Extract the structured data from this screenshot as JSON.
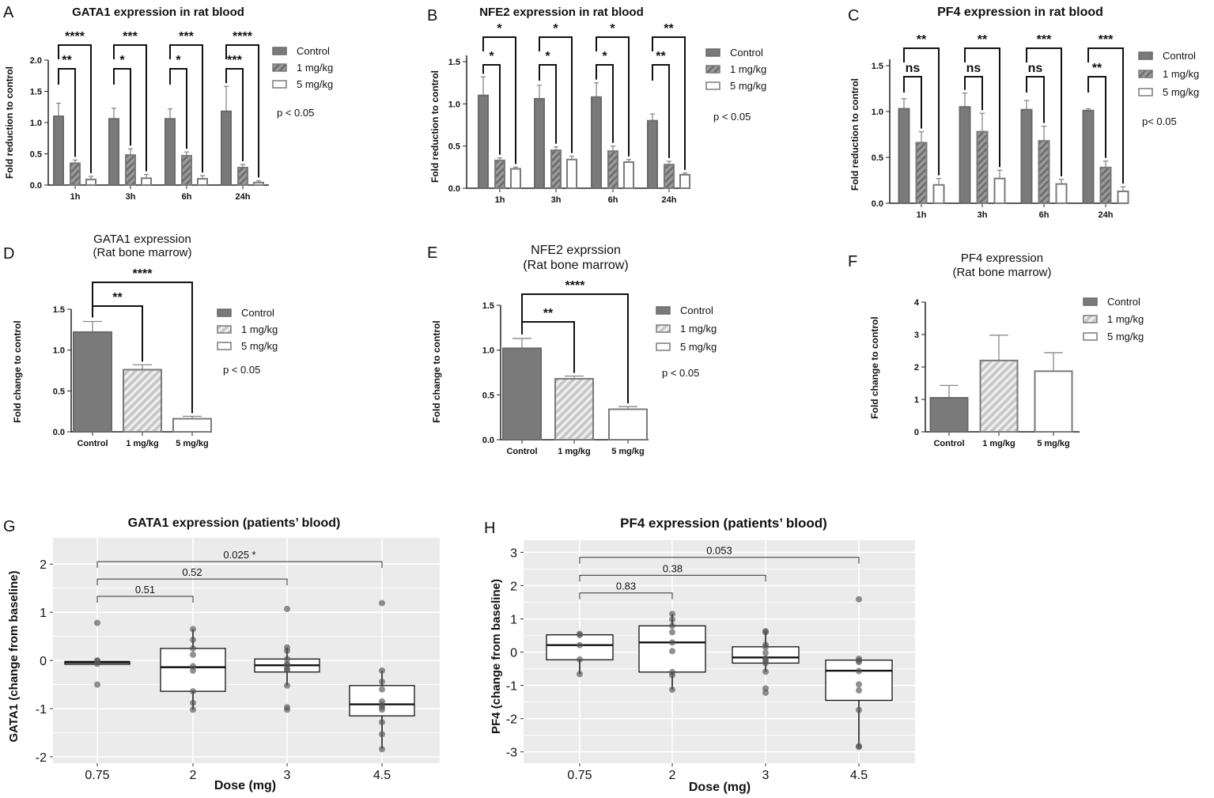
{
  "chart_data": [
    {
      "panel": "A",
      "type": "bar",
      "title": "GATA1 expression in rat blood",
      "ylabel": "Fold reduction to control",
      "xlabel": "",
      "categories": [
        "1h",
        "3h",
        "6h",
        "24h"
      ],
      "ylim": [
        0,
        2.0
      ],
      "yticks": [
        "0.0",
        "0.5",
        "1.0",
        "1.5",
        "2.0"
      ],
      "ytick_values": [
        0,
        0.5,
        1.0,
        1.5,
        2.0
      ],
      "series": [
        {
          "name": "Control",
          "values": [
            1.1,
            1.06,
            1.06,
            1.18
          ],
          "errors": [
            0.21,
            0.17,
            0.16,
            0.4
          ]
        },
        {
          "name": "1 mg/kg",
          "values": [
            0.35,
            0.48,
            0.47,
            0.28
          ],
          "errors": [
            0.05,
            0.1,
            0.06,
            0.05
          ]
        },
        {
          "name": "5 mg/kg",
          "values": [
            0.09,
            0.11,
            0.1,
            0.04
          ],
          "errors": [
            0.05,
            0.06,
            0.05,
            0.03
          ]
        }
      ],
      "significance": [
        {
          "vs_1mg": "**",
          "vs_5mg": "****"
        },
        {
          "vs_1mg": "*",
          "vs_5mg": "***"
        },
        {
          "vs_1mg": "*",
          "vs_5mg": "***"
        },
        {
          "vs_1mg": "***",
          "vs_5mg": "****"
        }
      ],
      "note": "p < 0.05",
      "legend": "right"
    },
    {
      "panel": "B",
      "type": "bar",
      "title": "NFE2 expression in rat blood",
      "ylabel": "Fold reduction to control",
      "xlabel": "",
      "categories": [
        "1h",
        "3h",
        "6h",
        "24h"
      ],
      "ylim": [
        0,
        1.5
      ],
      "yticks": [
        "0.0",
        "0.5",
        "1.0",
        "1.5"
      ],
      "ytick_values": [
        0,
        0.5,
        1.0,
        1.5
      ],
      "series": [
        {
          "name": "Control",
          "values": [
            1.1,
            1.06,
            1.08,
            0.8
          ],
          "errors": [
            0.22,
            0.16,
            0.17,
            0.08
          ]
        },
        {
          "name": "1 mg/kg",
          "values": [
            0.33,
            0.45,
            0.44,
            0.28
          ],
          "errors": [
            0.03,
            0.04,
            0.06,
            0.04
          ]
        },
        {
          "name": "5 mg/kg",
          "values": [
            0.23,
            0.34,
            0.31,
            0.16
          ],
          "errors": [
            0.02,
            0.04,
            0.03,
            0.02
          ]
        }
      ],
      "significance": [
        {
          "vs_1mg": "*",
          "vs_5mg": "*"
        },
        {
          "vs_1mg": "*",
          "vs_5mg": "*"
        },
        {
          "vs_1mg": "*",
          "vs_5mg": "*"
        },
        {
          "vs_1mg": "**",
          "vs_5mg": "**"
        }
      ],
      "note": "p < 0.05",
      "legend": "right"
    },
    {
      "panel": "C",
      "type": "bar",
      "title": "PF4 expression in rat blood",
      "ylabel": "Fold reduction to control",
      "xlabel": "",
      "categories": [
        "1h",
        "3h",
        "6h",
        "24h"
      ],
      "ylim": [
        0,
        1.5
      ],
      "yticks": [
        "0.0",
        "0.5",
        "1.0",
        "1.5"
      ],
      "ytick_values": [
        0,
        0.5,
        1.0,
        1.5
      ],
      "series": [
        {
          "name": "Control",
          "values": [
            1.03,
            1.05,
            1.02,
            1.01
          ],
          "errors": [
            0.11,
            0.15,
            0.1,
            0.02
          ]
        },
        {
          "name": "1 mg/kg",
          "values": [
            0.66,
            0.78,
            0.68,
            0.39
          ],
          "errors": [
            0.12,
            0.2,
            0.16,
            0.07
          ]
        },
        {
          "name": "5 mg/kg",
          "values": [
            0.2,
            0.27,
            0.21,
            0.13
          ],
          "errors": [
            0.07,
            0.09,
            0.05,
            0.05
          ]
        }
      ],
      "significance": [
        {
          "vs_1mg": "ns",
          "vs_5mg": "**"
        },
        {
          "vs_1mg": "ns",
          "vs_5mg": "**"
        },
        {
          "vs_1mg": "ns",
          "vs_5mg": "***"
        },
        {
          "vs_1mg": "**",
          "vs_5mg": "***"
        }
      ],
      "note": "p< 0.05",
      "legend": "right"
    },
    {
      "panel": "D",
      "type": "bar",
      "title": "GATA1 expression",
      "subtitle": "(Rat bone marrow)",
      "ylabel": "Fold change to control",
      "xlabel": "",
      "categories": [
        "Control",
        "1 mg/kg",
        "5 mg/kg"
      ],
      "ylim": [
        0,
        1.5
      ],
      "yticks": [
        "0.0",
        "0.5",
        "1.0",
        "1.5"
      ],
      "ytick_values": [
        0,
        0.5,
        1.0,
        1.5
      ],
      "values": [
        1.22,
        0.76,
        0.16
      ],
      "errors": [
        0.13,
        0.06,
        0.03
      ],
      "legend_entries": [
        "Control",
        "1 mg/kg",
        "5 mg/kg"
      ],
      "significance": {
        "vs_1mg": "**",
        "vs_5mg": "****"
      },
      "note": "p < 0.05",
      "legend": "right"
    },
    {
      "panel": "E",
      "type": "bar",
      "title": "NFE2 exprssion",
      "subtitle": "(Rat bone marrow)",
      "ylabel": "Fold change to control",
      "xlabel": "",
      "categories": [
        "Control",
        "1 mg/kg",
        "5 mg/kg"
      ],
      "ylim": [
        0,
        1.5
      ],
      "yticks": [
        "0.0",
        "0.5",
        "1.0",
        "1.5"
      ],
      "ytick_values": [
        0,
        0.5,
        1.0,
        1.5
      ],
      "values": [
        1.02,
        0.68,
        0.34
      ],
      "errors": [
        0.11,
        0.03,
        0.03
      ],
      "legend_entries": [
        "Control",
        "1 mg/kg",
        "5 mg/kg"
      ],
      "significance": {
        "vs_1mg": "**",
        "vs_5mg": "****"
      },
      "note": "p < 0.05",
      "legend": "right"
    },
    {
      "panel": "F",
      "type": "bar",
      "title": "PF4 expression",
      "subtitle": "(Rat bone marrow)",
      "ylabel": "Fold change to control",
      "xlabel": "",
      "categories": [
        "Control",
        "1 mg/kg",
        "5 mg/kg"
      ],
      "ylim": [
        0,
        4
      ],
      "yticks": [
        "0",
        "1",
        "2",
        "3",
        "4"
      ],
      "ytick_values": [
        0,
        1,
        2,
        3,
        4
      ],
      "values": [
        1.05,
        2.2,
        1.87
      ],
      "errors": [
        0.38,
        0.78,
        0.57
      ],
      "legend_entries": [
        "Control",
        "1 mg/kg",
        "5 mg/kg"
      ],
      "legend": "right"
    },
    {
      "panel": "G",
      "type": "box",
      "title": "GATA1 expression (patients’ blood)",
      "ylabel": "GATA1 (change from baseline)",
      "xlabel": "Dose (mg)",
      "categories": [
        "0.75",
        "2",
        "3",
        "4.5"
      ],
      "ylim": [
        -2.05,
        2.25
      ],
      "yticks": [
        "-2",
        "-1",
        "0",
        "1",
        "2"
      ],
      "ytick_values": [
        -2,
        -1,
        0,
        1,
        2
      ],
      "boxes": [
        {
          "q1": -0.08,
          "median": -0.04,
          "q3": -0.02,
          "whisker": [
            -0.08,
            -0.02
          ],
          "points": [
            0.78,
            0.0,
            -0.01,
            -0.07,
            -0.5
          ]
        },
        {
          "q1": -0.64,
          "median": -0.14,
          "q3": 0.25,
          "whisker": [
            -1.02,
            0.65
          ],
          "points": [
            0.65,
            0.43,
            0.25,
            0.12,
            -0.12,
            -0.21,
            -0.64,
            -0.88,
            -1.02
          ]
        },
        {
          "q1": -0.24,
          "median": -0.1,
          "q3": 0.03,
          "whisker": [
            -0.52,
            0.27
          ],
          "points": [
            1.07,
            0.27,
            0.2,
            0.03,
            -0.07,
            -0.1,
            -0.17,
            -0.2,
            -0.52,
            -0.97,
            -1.02
          ]
        },
        {
          "q1": -1.15,
          "median": -0.91,
          "q3": -0.52,
          "whisker": [
            -1.84,
            -0.21
          ],
          "points": [
            1.19,
            -0.21,
            -0.44,
            -0.6,
            -0.85,
            -0.92,
            -0.97,
            -1.02,
            -1.28,
            -1.53,
            -1.84
          ]
        }
      ],
      "comparisons": [
        {
          "from": "0.75",
          "to": "2",
          "label": "0.51",
          "y": 1.33
        },
        {
          "from": "0.75",
          "to": "3",
          "label": "0.52",
          "y": 1.69
        },
        {
          "from": "0.75",
          "to": "4.5",
          "label": "0.025 *",
          "y": 2.05
        }
      ]
    },
    {
      "panel": "H",
      "type": "box",
      "title": "PF4 expression (patients’ blood)",
      "ylabel": "PF4 (change from baseline)",
      "xlabel": "Dose (mg)",
      "categories": [
        "0.75",
        "2",
        "3",
        "4.5"
      ],
      "ylim": [
        -3.15,
        3.2
      ],
      "yticks": [
        "-3",
        "-2",
        "-1",
        "0",
        "1",
        "2",
        "3"
      ],
      "ytick_values": [
        -3,
        -2,
        -1,
        0,
        1,
        2,
        3
      ],
      "boxes": [
        {
          "q1": -0.23,
          "median": 0.21,
          "q3": 0.52,
          "whisker": [
            -0.66,
            0.55
          ],
          "points": [
            0.55,
            0.51,
            0.21,
            -0.22,
            -0.66
          ]
        },
        {
          "q1": -0.6,
          "median": 0.29,
          "q3": 0.79,
          "whisker": [
            -1.13,
            1.15
          ],
          "points": [
            1.15,
            0.98,
            0.79,
            0.6,
            0.29,
            0.03,
            -0.6,
            -0.69,
            -1.13
          ]
        },
        {
          "q1": -0.33,
          "median": -0.16,
          "q3": 0.16,
          "whisker": [
            -0.59,
            0.63
          ],
          "points": [
            0.63,
            0.6,
            0.22,
            0.15,
            -0.02,
            -0.19,
            -0.25,
            -0.33,
            -0.59,
            -1.09,
            -1.22
          ]
        },
        {
          "q1": -1.45,
          "median": -0.56,
          "q3": -0.24,
          "whisker": [
            -2.85,
            -0.2
          ],
          "points": [
            1.59,
            -0.2,
            -0.25,
            -0.3,
            -0.57,
            -0.97,
            -1.15,
            -1.74,
            -2.83,
            -2.85
          ]
        }
      ],
      "comparisons": [
        {
          "from": "0.75",
          "to": "2",
          "label": "0.83",
          "y": 1.78
        },
        {
          "from": "0.75",
          "to": "3",
          "label": "0.38",
          "y": 2.31
        },
        {
          "from": "0.75",
          "to": "4.5",
          "label": "0.053",
          "y": 2.85
        }
      ]
    }
  ],
  "colors": {
    "control": "#7a7a7a",
    "hatch_dark": "#9a9a9a",
    "hatch_light": "#c8c8c8",
    "panel_bg": "#ebebeb",
    "point": "#5a5a5a"
  }
}
